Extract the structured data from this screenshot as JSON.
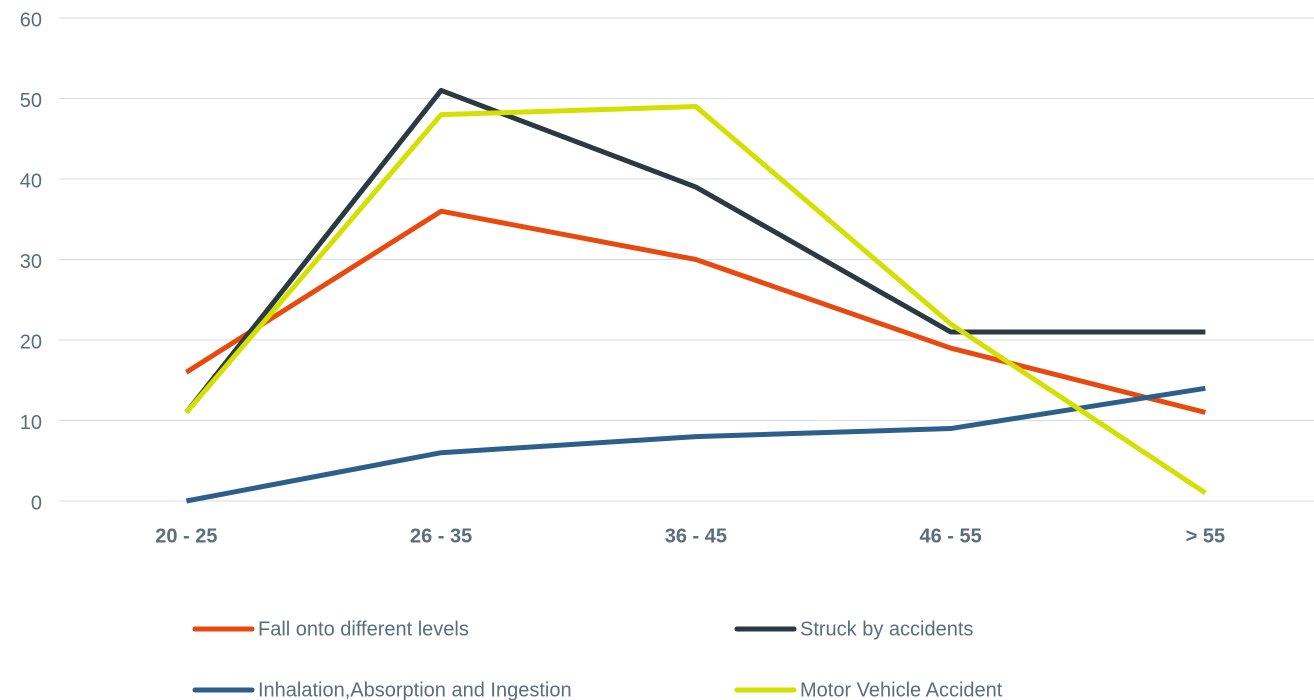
{
  "chart_data": {
    "type": "line",
    "categories": [
      "20 - 25",
      "26 - 35",
      "36 - 45",
      "46 - 55",
      "> 55"
    ],
    "series": [
      {
        "name": "Fall onto different levels",
        "color": "#e8490f",
        "values": [
          16,
          36,
          30,
          19,
          11
        ]
      },
      {
        "name": "Struck by accidents",
        "color": "#2b3a42",
        "values": [
          11,
          51,
          39,
          21,
          21
        ]
      },
      {
        "name": "Inhalation,Absorption and Ingestion",
        "color": "#2e5f8a",
        "values": [
          0,
          6,
          8,
          9,
          14
        ]
      },
      {
        "name": "Motor Vehicle Accident",
        "color": "#d4e000",
        "values": [
          11,
          48,
          49,
          22,
          1
        ]
      }
    ],
    "ylim": [
      0,
      60
    ],
    "yticks": [
      0,
      10,
      20,
      30,
      40,
      50,
      60
    ],
    "grid": true,
    "legend": "bottom"
  }
}
